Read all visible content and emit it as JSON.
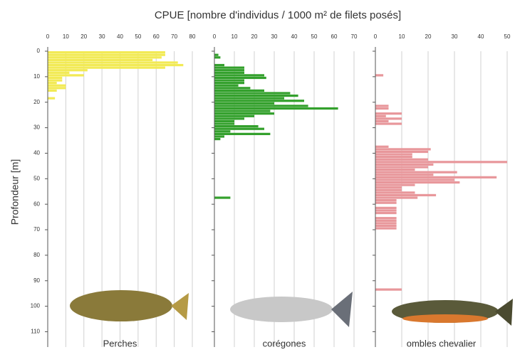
{
  "chart_data": {
    "type": "bar",
    "title": "CPUE [nombre d'individus / 1000 m² de filets posés]",
    "y_label": "Profondeur [m]",
    "ylim": [
      0,
      116
    ],
    "yticks": [
      0,
      10,
      20,
      30,
      40,
      50,
      60,
      70,
      80,
      90,
      100,
      110
    ],
    "grid": true,
    "series": [
      {
        "name": "Perches",
        "color": "#f2ea55",
        "xlim": [
          0,
          80
        ],
        "xticks": [
          0,
          10,
          20,
          30,
          40,
          50,
          60,
          70,
          80
        ],
        "depths": [
          0,
          1,
          2,
          3,
          4,
          5,
          6,
          7,
          8,
          9,
          10,
          11,
          12,
          13,
          14,
          15,
          18
        ],
        "values": [
          65,
          65,
          63,
          58,
          72,
          75,
          65,
          22,
          12,
          20,
          8,
          8,
          5,
          10,
          10,
          5,
          4
        ]
      },
      {
        "name": "corégones",
        "color": "#33a02c",
        "xlim": [
          0,
          70
        ],
        "xticks": [
          0,
          10,
          20,
          30,
          40,
          50,
          60,
          70
        ],
        "depths": [
          1,
          2,
          5,
          6,
          7,
          8,
          9,
          10,
          11,
          12,
          13,
          14,
          15,
          16,
          17,
          18,
          19,
          20,
          21,
          22,
          23,
          24,
          25,
          26,
          27,
          28,
          29,
          30,
          31,
          32,
          33,
          34,
          57
        ],
        "values": [
          2,
          3,
          5,
          15,
          15,
          15,
          25,
          26,
          15,
          15,
          12,
          18,
          25,
          38,
          42,
          35,
          45,
          30,
          47,
          62,
          28,
          30,
          20,
          15,
          10,
          10,
          22,
          25,
          8,
          28,
          5,
          3,
          8
        ]
      },
      {
        "name": "ombles chevalier",
        "color": "#e8979b",
        "xlim": [
          0,
          50
        ],
        "xticks": [
          0,
          10,
          20,
          30,
          40,
          50
        ],
        "depths": [
          9,
          21,
          22,
          24,
          25,
          26,
          27,
          28,
          37,
          38,
          39,
          40,
          41,
          42,
          43,
          44,
          45,
          46,
          47,
          48,
          49,
          50,
          51,
          52,
          53,
          54,
          55,
          56,
          57,
          58,
          59,
          61,
          62,
          63,
          65,
          66,
          67,
          68,
          69,
          93
        ],
        "values": [
          3,
          5,
          5,
          10,
          4,
          10,
          5,
          10,
          5,
          21,
          20,
          14,
          14,
          20,
          50,
          22,
          20,
          15,
          31,
          22,
          46,
          30,
          32,
          15,
          10,
          10,
          15,
          23,
          16,
          8,
          8,
          8,
          8,
          8,
          8,
          8,
          8,
          8,
          8,
          10
        ]
      }
    ]
  }
}
